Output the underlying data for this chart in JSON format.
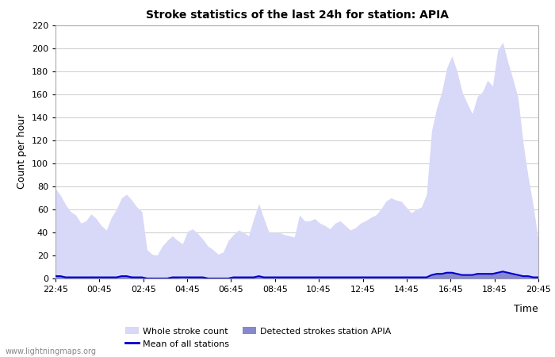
{
  "title": "Stroke statistics of the last 24h for station: APIA",
  "xlabel": "Time",
  "ylabel": "Count per hour",
  "ylim": [
    0,
    220
  ],
  "yticks": [
    0,
    20,
    40,
    60,
    80,
    100,
    120,
    140,
    160,
    180,
    200,
    220
  ],
  "xtick_labels": [
    "22:45",
    "00:45",
    "02:45",
    "04:45",
    "06:45",
    "08:45",
    "10:45",
    "12:45",
    "14:45",
    "16:45",
    "18:45",
    "20:45"
  ],
  "watermark": "www.lightningmaps.org",
  "legend_items": [
    "Whole stroke count",
    "Detected strokes station APIA",
    "Mean of all stations"
  ],
  "whole_stroke_color": "#d8d8f8",
  "detected_stroke_color": "#8888cc",
  "mean_line_color": "#0000cc",
  "x": [
    0,
    1,
    2,
    3,
    4,
    5,
    6,
    7,
    8,
    9,
    10,
    11,
    12,
    13,
    14,
    15,
    16,
    17,
    18,
    19,
    20,
    21,
    22,
    23,
    24,
    25,
    26,
    27,
    28,
    29,
    30,
    31,
    32,
    33,
    34,
    35,
    36,
    37,
    38,
    39,
    40,
    41,
    42,
    43,
    44,
    45,
    46,
    47,
    48,
    49,
    50,
    51,
    52,
    53,
    54,
    55,
    56,
    57,
    58,
    59,
    60,
    61,
    62,
    63,
    64,
    65,
    66,
    67,
    68,
    69,
    70,
    71,
    72,
    73,
    74,
    75,
    76,
    77,
    78,
    79,
    80,
    81,
    82,
    83,
    84,
    85,
    86,
    87,
    88,
    89,
    90,
    91,
    92,
    93,
    94,
    95
  ],
  "whole_stroke_values": [
    78,
    72,
    64,
    58,
    55,
    48,
    50,
    56,
    52,
    46,
    42,
    53,
    60,
    70,
    73,
    68,
    62,
    58,
    25,
    21,
    20,
    28,
    33,
    37,
    33,
    30,
    41,
    43,
    39,
    34,
    28,
    25,
    21,
    23,
    33,
    38,
    42,
    40,
    37,
    52,
    65,
    52,
    40,
    40,
    40,
    38,
    37,
    36,
    55,
    50,
    50,
    52,
    48,
    46,
    43,
    48,
    50,
    46,
    42,
    44,
    48,
    50,
    53,
    55,
    60,
    67,
    70,
    68,
    67,
    62,
    57,
    60,
    62,
    73,
    128,
    148,
    162,
    183,
    193,
    180,
    162,
    152,
    143,
    158,
    162,
    172,
    167,
    198,
    205,
    188,
    173,
    157,
    118,
    88,
    63,
    33
  ],
  "detected_stroke_values": [
    3,
    2,
    1,
    1,
    1,
    1,
    1,
    2,
    1,
    1,
    1,
    1,
    1,
    2,
    2,
    2,
    1,
    1,
    0,
    0,
    0,
    0,
    0,
    1,
    1,
    0,
    1,
    1,
    1,
    1,
    0,
    0,
    0,
    0,
    0,
    1,
    1,
    1,
    1,
    1,
    2,
    1,
    1,
    1,
    1,
    1,
    1,
    1,
    1,
    1,
    1,
    1,
    1,
    1,
    1,
    1,
    1,
    1,
    1,
    1,
    1,
    1,
    1,
    1,
    1,
    1,
    1,
    1,
    1,
    1,
    1,
    1,
    1,
    1,
    3,
    4,
    4,
    5,
    5,
    4,
    3,
    3,
    3,
    4,
    4,
    4,
    4,
    5,
    6,
    5,
    4,
    3,
    2,
    2,
    1,
    1
  ],
  "mean_line_values": [
    2,
    2,
    1,
    1,
    1,
    1,
    1,
    1,
    1,
    1,
    1,
    1,
    1,
    2,
    2,
    1,
    1,
    1,
    0,
    0,
    0,
    0,
    0,
    1,
    1,
    1,
    1,
    1,
    1,
    1,
    0,
    0,
    0,
    0,
    0,
    1,
    1,
    1,
    1,
    1,
    2,
    1,
    1,
    1,
    1,
    1,
    1,
    1,
    1,
    1,
    1,
    1,
    1,
    1,
    1,
    1,
    1,
    1,
    1,
    1,
    1,
    1,
    1,
    1,
    1,
    1,
    1,
    1,
    1,
    1,
    1,
    1,
    1,
    1,
    3,
    4,
    4,
    5,
    5,
    4,
    3,
    3,
    3,
    4,
    4,
    4,
    4,
    5,
    6,
    5,
    4,
    3,
    2,
    2,
    1,
    1
  ]
}
